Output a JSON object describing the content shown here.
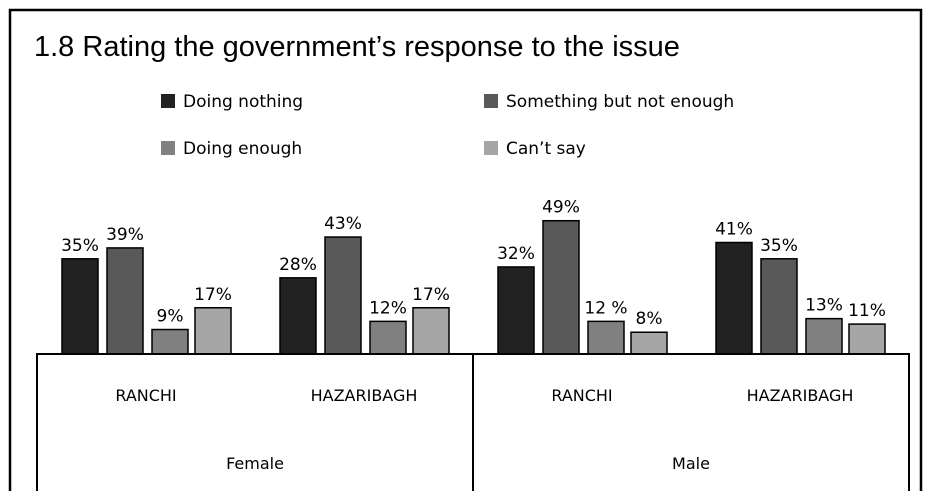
{
  "chart_data": {
    "type": "bar",
    "title": "1.8  Rating the government’s response to the issue",
    "groups": [
      {
        "name": "Female",
        "categories": [
          "RANCHI",
          "HAZARIBAGH"
        ]
      },
      {
        "name": "Male",
        "categories": [
          "RANCHI",
          "HAZARIBAGH"
        ]
      }
    ],
    "series": [
      {
        "name": "Doing nothing",
        "color": "#222222",
        "values": [
          35,
          28,
          32,
          41
        ],
        "labels": [
          "35%",
          "28%",
          "32%",
          "41%"
        ]
      },
      {
        "name": "Something but not enough",
        "color": "#595959",
        "values": [
          39,
          43,
          49,
          35
        ],
        "labels": [
          "39%",
          "43%",
          "49%",
          "35%"
        ]
      },
      {
        "name": "Doing enough",
        "color": "#808080",
        "values": [
          9,
          12,
          12,
          13
        ],
        "labels": [
          "9%",
          "12%",
          "12 %",
          "13%"
        ]
      },
      {
        "name": "Can’t say",
        "color": "#a6a6a6",
        "values": [
          17,
          17,
          8,
          11
        ],
        "labels": [
          "17%",
          "17%",
          "8%",
          "11%"
        ]
      }
    ],
    "legend_position": "top",
    "grid": false
  }
}
